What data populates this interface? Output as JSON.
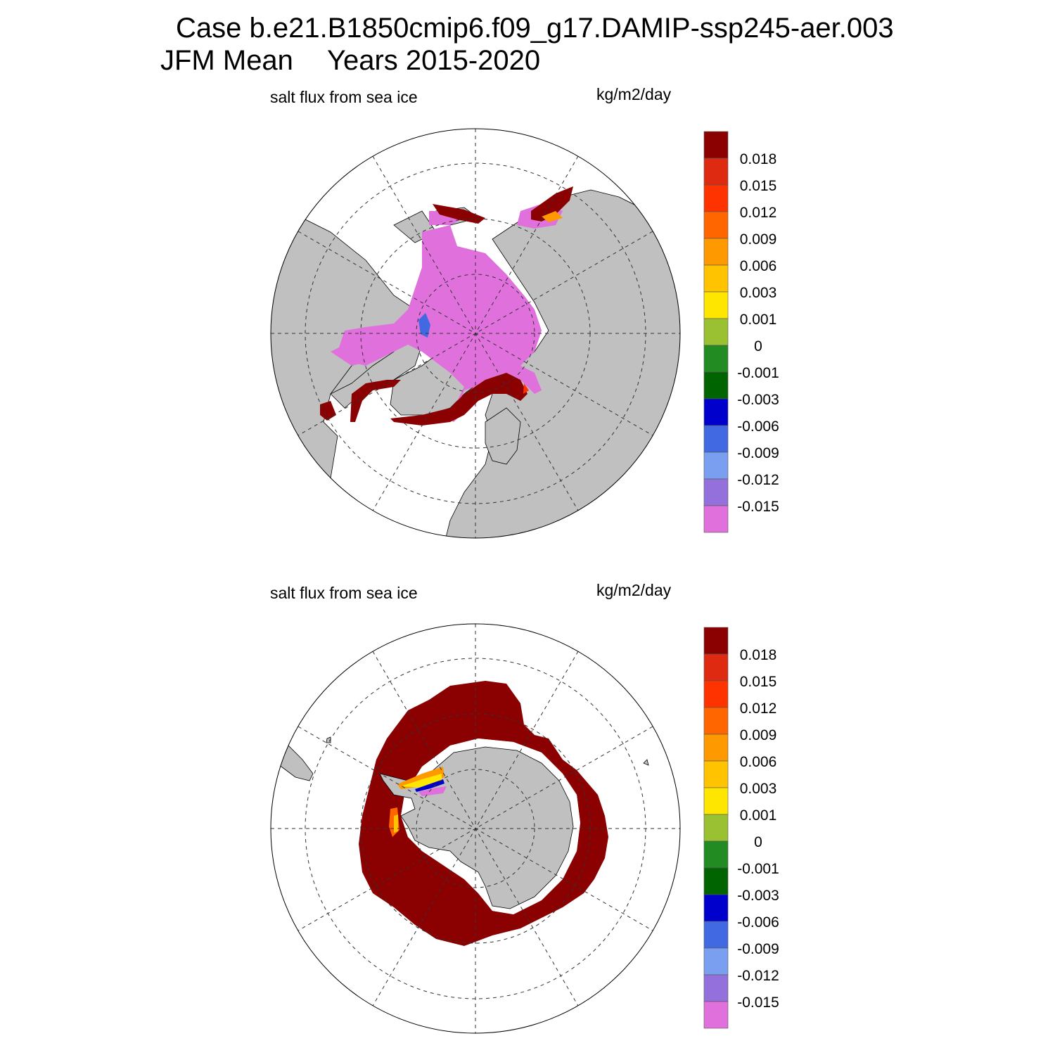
{
  "header": {
    "case_line": "Case b.e21.B1850cmip6.f09_g17.DAMIP-ssp245-aer.003",
    "season": "JFM Mean",
    "years": "Years 2015-2020"
  },
  "panels": [
    {
      "variable": "salt flux from sea ice",
      "units": "kg/m2/day",
      "hemisphere": "north"
    },
    {
      "variable": "salt flux from sea ice",
      "units": "kg/m2/day",
      "hemisphere": "south"
    }
  ],
  "colorbar": {
    "labels": [
      "0.018",
      "0.015",
      "0.012",
      "0.009",
      "0.006",
      "0.003",
      "0.001",
      "0",
      "-0.001",
      "-0.003",
      "-0.006",
      "-0.009",
      "-0.012",
      "-0.015"
    ],
    "colors": [
      "#8b0000",
      "#dd2a10",
      "#ff3300",
      "#ff6600",
      "#ff9900",
      "#ffc300",
      "#ffe600",
      "#9ac132",
      "#228b22",
      "#006400",
      "#0000cd",
      "#4169e1",
      "#7b9ff0",
      "#9370db",
      "#e070dc"
    ]
  },
  "map_colors": {
    "land": "#c0c0c0",
    "ocean": "#ffffff",
    "high_positive": "#8b0000",
    "strong_negative": "#e070dc"
  }
}
